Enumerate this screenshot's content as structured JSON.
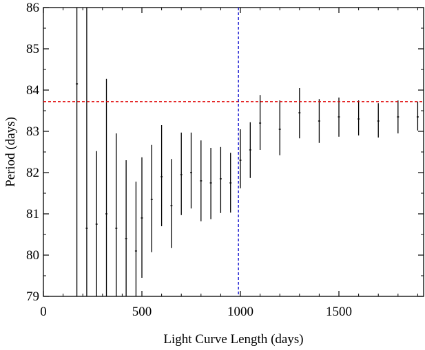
{
  "chart_data": {
    "type": "scatter",
    "title": "",
    "xlabel": "Light Curve Length (days)",
    "ylabel": "Period (days)",
    "xlim": [
      0,
      1930
    ],
    "ylim": [
      79,
      86
    ],
    "grid": false,
    "x_ticks": [
      0,
      500,
      1000,
      1500
    ],
    "y_ticks": [
      79,
      80,
      81,
      82,
      83,
      84,
      85,
      86
    ],
    "reference_lines": [
      {
        "orientation": "horizontal",
        "value": 83.72,
        "color": "#e00000",
        "style": "dashed"
      },
      {
        "orientation": "vertical",
        "value": 990,
        "color": "#0000cc",
        "style": "dashed"
      }
    ],
    "error_bars": [
      {
        "x": 170,
        "y": 84.15,
        "low": 79.0,
        "high": 86.0
      },
      {
        "x": 220,
        "y": 80.65,
        "low": 79.0,
        "high": 86.0
      },
      {
        "x": 270,
        "y": 80.75,
        "low": 79.0,
        "high": 82.52
      },
      {
        "x": 320,
        "y": 81.0,
        "low": 79.0,
        "high": 84.27
      },
      {
        "x": 370,
        "y": 80.65,
        "low": 79.0,
        "high": 82.95
      },
      {
        "x": 420,
        "y": 80.4,
        "low": 79.0,
        "high": 82.3
      },
      {
        "x": 470,
        "y": 80.1,
        "low": 79.0,
        "high": 81.78
      },
      {
        "x": 500,
        "y": 80.9,
        "low": 79.45,
        "high": 82.37
      },
      {
        "x": 550,
        "y": 81.35,
        "low": 80.07,
        "high": 82.67
      },
      {
        "x": 600,
        "y": 81.9,
        "low": 80.7,
        "high": 83.15
      },
      {
        "x": 650,
        "y": 81.2,
        "low": 80.17,
        "high": 82.33
      },
      {
        "x": 700,
        "y": 81.95,
        "low": 80.97,
        "high": 82.97
      },
      {
        "x": 750,
        "y": 82.0,
        "low": 81.13,
        "high": 82.97
      },
      {
        "x": 800,
        "y": 81.8,
        "low": 80.82,
        "high": 82.78
      },
      {
        "x": 850,
        "y": 81.75,
        "low": 80.87,
        "high": 82.6
      },
      {
        "x": 900,
        "y": 81.85,
        "low": 81.02,
        "high": 82.62
      },
      {
        "x": 950,
        "y": 81.75,
        "low": 81.03,
        "high": 82.48
      },
      {
        "x": 1000,
        "y": 82.3,
        "low": 81.62,
        "high": 83.05
      },
      {
        "x": 1050,
        "y": 82.55,
        "low": 81.87,
        "high": 83.22
      },
      {
        "x": 1100,
        "y": 83.2,
        "low": 82.55,
        "high": 83.88
      },
      {
        "x": 1200,
        "y": 83.05,
        "low": 82.42,
        "high": 83.75
      },
      {
        "x": 1300,
        "y": 83.45,
        "low": 82.83,
        "high": 84.05
      },
      {
        "x": 1400,
        "y": 83.25,
        "low": 82.72,
        "high": 83.78
      },
      {
        "x": 1500,
        "y": 83.35,
        "low": 82.87,
        "high": 83.82
      },
      {
        "x": 1600,
        "y": 83.3,
        "low": 82.9,
        "high": 83.75
      },
      {
        "x": 1700,
        "y": 83.25,
        "low": 82.85,
        "high": 83.68
      },
      {
        "x": 1800,
        "y": 83.35,
        "low": 82.95,
        "high": 83.75
      },
      {
        "x": 1900,
        "y": 83.35,
        "low": 83.02,
        "high": 83.72
      }
    ]
  }
}
